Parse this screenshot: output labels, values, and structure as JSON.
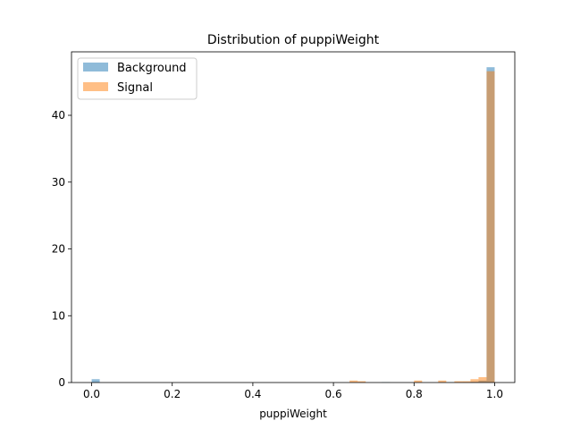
{
  "chart_data": {
    "type": "histogram",
    "title": "Distribution of puppiWeight",
    "xlabel": "puppiWeight",
    "ylabel": "",
    "xlim": [
      -0.05,
      1.05
    ],
    "ylim": [
      0,
      49.5
    ],
    "xticks": [
      0.0,
      0.2,
      0.4,
      0.6,
      0.8,
      1.0
    ],
    "xtick_labels": [
      "0.0",
      "0.2",
      "0.4",
      "0.6",
      "0.8",
      "1.0"
    ],
    "yticks": [
      0,
      10,
      20,
      30,
      40
    ],
    "ytick_labels": [
      "0",
      "10",
      "20",
      "30",
      "40"
    ],
    "grid": false,
    "legend_position": "upper left",
    "bins": {
      "start": 0.0,
      "end": 1.0,
      "count": 50
    },
    "series": [
      {
        "name": "Background",
        "color": "#1f77b4",
        "alpha": 0.5,
        "counts": [
          0.5,
          0,
          0,
          0,
          0,
          0,
          0,
          0,
          0,
          0,
          0,
          0,
          0,
          0,
          0,
          0,
          0,
          0,
          0,
          0,
          0,
          0,
          0,
          0,
          0,
          0,
          0,
          0,
          0,
          0,
          0,
          0,
          0,
          0,
          0,
          0,
          0.05,
          0,
          0,
          0,
          0,
          0,
          0,
          0,
          0.05,
          0,
          0.05,
          0.1,
          0.3,
          47.2
        ]
      },
      {
        "name": "Signal",
        "color": "#ff7f0e",
        "alpha": 0.5,
        "counts": [
          0,
          0,
          0,
          0,
          0,
          0,
          0,
          0,
          0,
          0,
          0,
          0,
          0,
          0,
          0,
          0,
          0,
          0,
          0,
          0,
          0,
          0,
          0,
          0,
          0,
          0,
          0,
          0,
          0,
          0,
          0,
          0,
          0.3,
          0.2,
          0,
          0,
          0,
          0,
          0,
          0,
          0.3,
          0,
          0,
          0.3,
          0,
          0.2,
          0.2,
          0.5,
          0.8,
          46.6
        ]
      }
    ]
  }
}
